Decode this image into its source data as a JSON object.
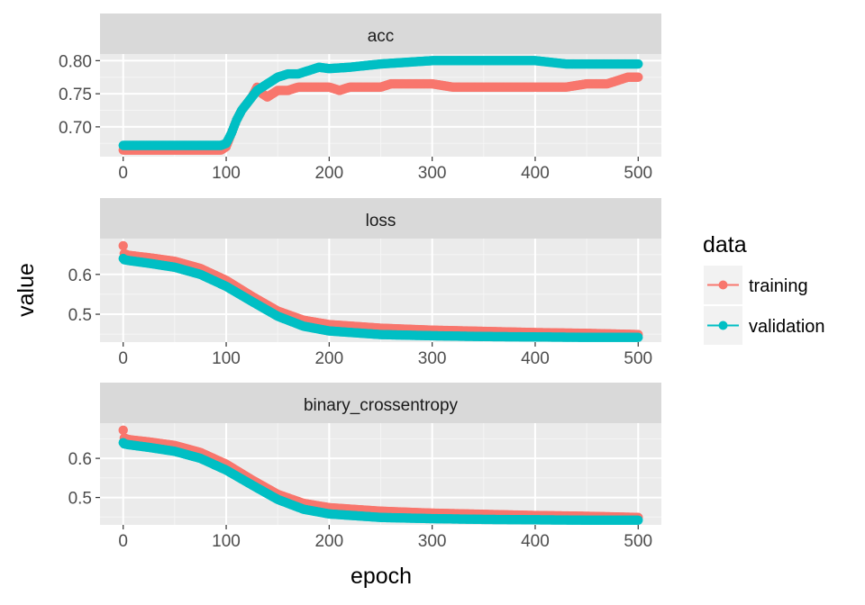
{
  "chart_data": {
    "type": "scatter",
    "xlabel": "epoch",
    "ylabel": "value",
    "legend": {
      "title": "data",
      "position": "right",
      "entries": [
        "training",
        "validation"
      ]
    },
    "colors": {
      "training": "#F8766D",
      "validation": "#00BFC4"
    },
    "x_range": [
      0,
      500
    ],
    "x_ticks": [
      "0",
      "100",
      "200",
      "300",
      "400",
      "500"
    ],
    "grid": true,
    "panels": [
      {
        "title": "acc",
        "ylim": [
          0.655,
          0.81
        ],
        "y_ticks": [
          "0.70",
          "0.75",
          "0.80"
        ],
        "series": [
          {
            "name": "training",
            "x": [
              0,
              50,
              95,
              100,
              105,
              110,
              115,
              120,
              125,
              130,
              135,
              140,
              150,
              160,
              170,
              180,
              200,
              210,
              220,
              250,
              260,
              270,
              300,
              320,
              340,
              400,
              430,
              450,
              470,
              480,
              490,
              500
            ],
            "values": [
              0.665,
              0.665,
              0.665,
              0.67,
              0.69,
              0.71,
              0.725,
              0.735,
              0.745,
              0.76,
              0.75,
              0.745,
              0.755,
              0.755,
              0.76,
              0.76,
              0.76,
              0.755,
              0.76,
              0.76,
              0.765,
              0.765,
              0.765,
              0.76,
              0.76,
              0.76,
              0.76,
              0.765,
              0.765,
              0.77,
              0.775,
              0.775
            ]
          },
          {
            "name": "validation",
            "x": [
              0,
              50,
              95,
              100,
              105,
              110,
              115,
              120,
              125,
              130,
              140,
              150,
              160,
              170,
              180,
              190,
              200,
              220,
              250,
              300,
              320,
              340,
              400,
              430,
              500
            ],
            "values": [
              0.672,
              0.672,
              0.672,
              0.675,
              0.69,
              0.71,
              0.725,
              0.735,
              0.745,
              0.755,
              0.765,
              0.775,
              0.78,
              0.78,
              0.785,
              0.79,
              0.788,
              0.79,
              0.795,
              0.8,
              0.8,
              0.8,
              0.8,
              0.795,
              0.795
            ]
          }
        ]
      },
      {
        "title": "loss",
        "ylim": [
          0.43,
          0.69
        ],
        "y_ticks": [
          "0.5",
          "0.6"
        ],
        "series": [
          {
            "name": "training",
            "x": [
              0,
              1,
              5,
              25,
              50,
              75,
              100,
              125,
              150,
              175,
              200,
              250,
              300,
              350,
              400,
              450,
              500
            ],
            "values": [
              0.672,
              0.652,
              0.648,
              0.642,
              0.633,
              0.615,
              0.585,
              0.545,
              0.508,
              0.485,
              0.474,
              0.465,
              0.46,
              0.457,
              0.454,
              0.452,
              0.449
            ]
          },
          {
            "name": "validation",
            "x": [
              0,
              1,
              5,
              25,
              50,
              75,
              100,
              125,
              150,
              175,
              200,
              250,
              300,
              350,
              400,
              450,
              500
            ],
            "values": [
              0.64,
              0.637,
              0.635,
              0.628,
              0.618,
              0.6,
              0.57,
              0.532,
              0.495,
              0.47,
              0.458,
              0.449,
              0.446,
              0.444,
              0.443,
              0.442,
              0.442
            ]
          }
        ]
      },
      {
        "title": "binary_crossentropy",
        "ylim": [
          0.43,
          0.69
        ],
        "y_ticks": [
          "0.5",
          "0.6"
        ],
        "series": [
          {
            "name": "training",
            "x": [
              0,
              1,
              5,
              25,
              50,
              75,
              100,
              125,
              150,
              175,
              200,
              250,
              300,
              350,
              400,
              450,
              500
            ],
            "values": [
              0.672,
              0.652,
              0.648,
              0.642,
              0.633,
              0.615,
              0.585,
              0.545,
              0.508,
              0.485,
              0.474,
              0.465,
              0.46,
              0.457,
              0.454,
              0.452,
              0.449
            ]
          },
          {
            "name": "validation",
            "x": [
              0,
              1,
              5,
              25,
              50,
              75,
              100,
              125,
              150,
              175,
              200,
              250,
              300,
              350,
              400,
              450,
              500
            ],
            "values": [
              0.64,
              0.637,
              0.635,
              0.628,
              0.618,
              0.6,
              0.57,
              0.532,
              0.495,
              0.47,
              0.458,
              0.449,
              0.446,
              0.444,
              0.443,
              0.442,
              0.442
            ]
          }
        ]
      }
    ]
  }
}
